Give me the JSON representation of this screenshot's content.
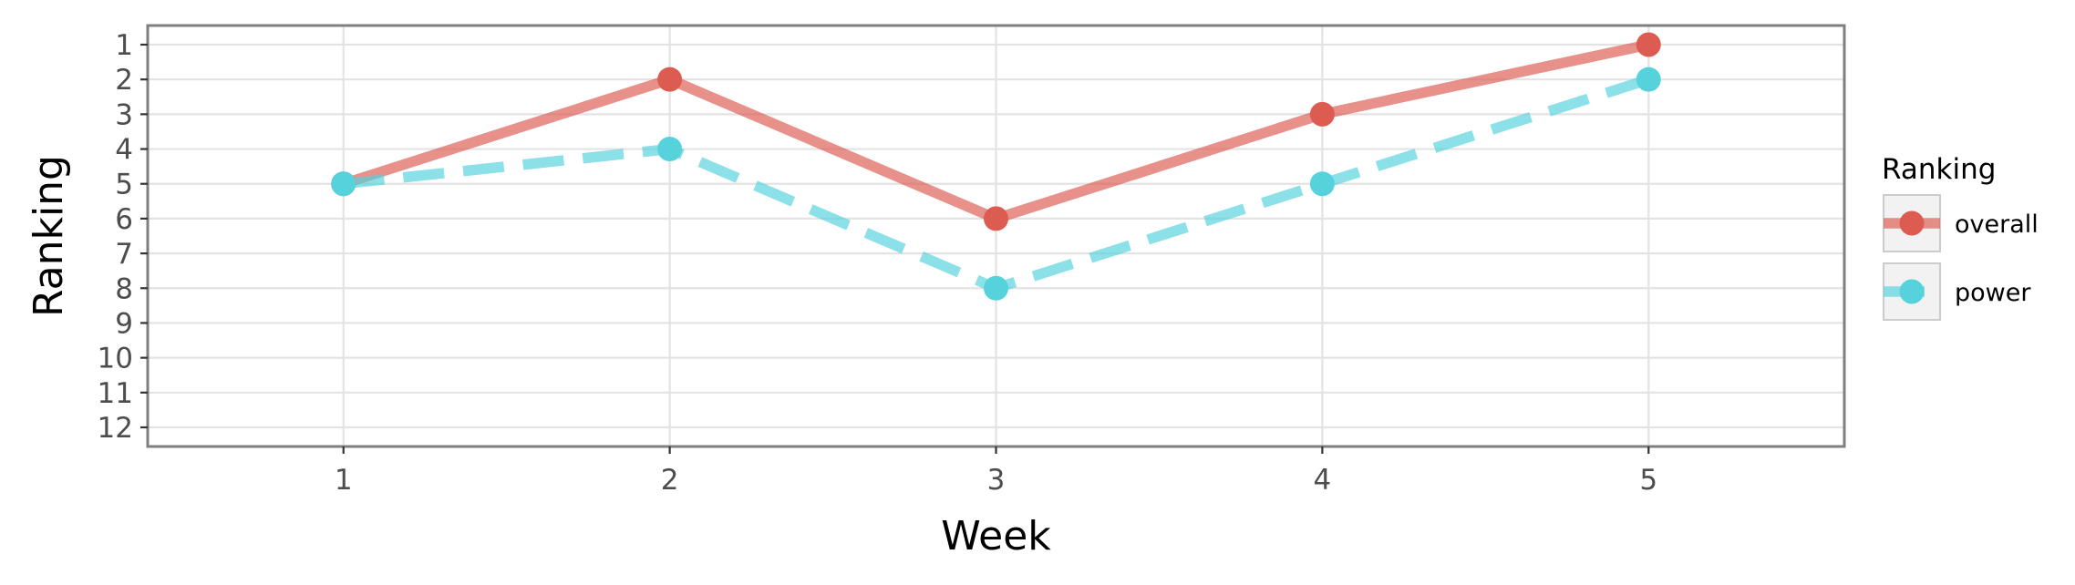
{
  "chart_data": {
    "type": "line",
    "title": "",
    "xlabel": "Week",
    "ylabel": "Ranking",
    "x": [
      1,
      2,
      3,
      4,
      5
    ],
    "xlim": [
      0.4,
      5.6
    ],
    "ylim": [
      12.55,
      0.45
    ],
    "y_reversed": true,
    "xticks": [
      1,
      2,
      3,
      4,
      5
    ],
    "yticks": [
      1,
      2,
      3,
      4,
      5,
      6,
      7,
      8,
      9,
      10,
      11,
      12
    ],
    "grid": true,
    "legend": {
      "title": "Ranking",
      "position": "right"
    },
    "series": [
      {
        "name": "overall",
        "values": [
          5,
          2,
          6,
          3,
          1
        ],
        "color": "#dd5c52",
        "line_style": "solid"
      },
      {
        "name": "power",
        "values": [
          5,
          4,
          8,
          5,
          2
        ],
        "color": "#55d2dc",
        "line_style": "dashed"
      }
    ]
  }
}
